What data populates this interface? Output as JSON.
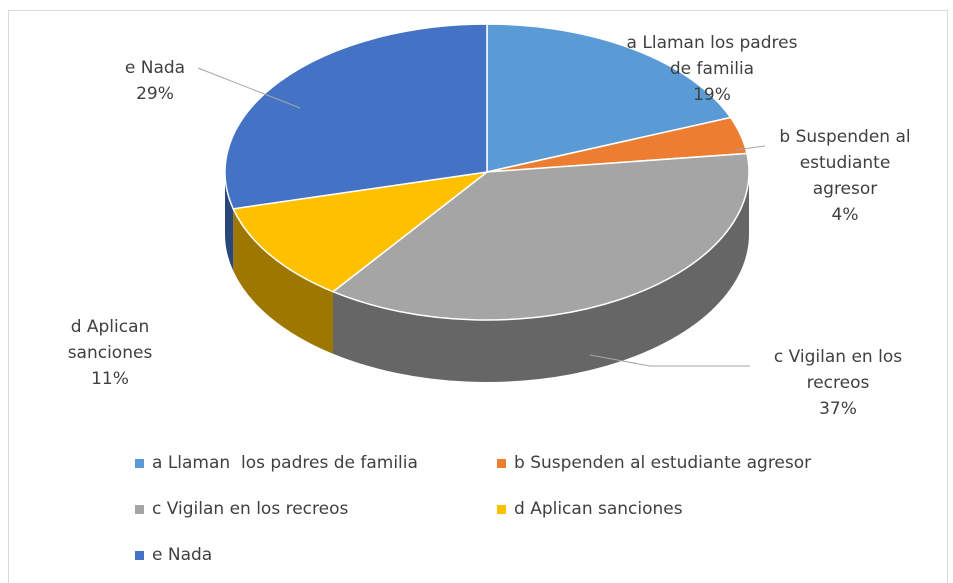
{
  "chart_data": {
    "type": "pie",
    "categories": [
      "a Llaman  los padres de familia",
      "b Suspenden al estudiante agresor",
      "c Vigilan en los recreos",
      "d Aplican sanciones",
      "e Nada"
    ],
    "values": [
      19,
      4,
      37,
      11,
      29
    ],
    "value_labels": [
      "19%",
      "4%",
      "37%",
      "11%",
      "29%"
    ],
    "colors": [
      "#5b9bd5",
      "#ed7d31",
      "#a5a5a5",
      "#ffc000",
      "#4472c4"
    ],
    "legend": "bottom"
  }
}
